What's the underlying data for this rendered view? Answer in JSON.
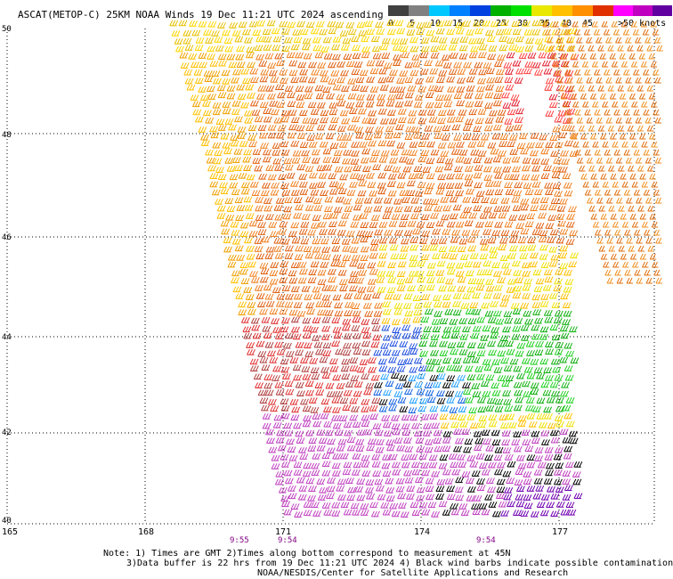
{
  "title": "ASCAT(METOP-C) 25KM NOAA Winds 19 Dec 11:21 UTC 2024 ascending",
  "colorbar": {
    "colors": [
      "#404040",
      "#808080",
      "#00c8ff",
      "#0080ff",
      "#0040e0",
      "#00b000",
      "#00e000",
      "#e8e800",
      "#ffc000",
      "#ff9000",
      "#e03000",
      "#ff3030",
      "#8b5a2b",
      "#b07040",
      "#ff00ff",
      "#c000c0",
      "#6000a0"
    ],
    "labels": [
      "0",
      "5",
      "10",
      "15",
      "20",
      "25",
      "30",
      "35",
      "40",
      "45",
      ">50 knots"
    ]
  },
  "latitudes": [
    "50",
    "48",
    "46",
    "44",
    "42",
    "40"
  ],
  "longitudes": [
    "165",
    "168",
    "171",
    "174",
    "177"
  ],
  "times": [
    "9:55",
    "9:54",
    "9:54"
  ],
  "notes": {
    "line1": "Note: 1) Times are GMT 2)Times along bottom correspond to measurement at 45N",
    "line2": "3)Data buffer is 22 hrs from 19 Dec 11:21 UTC 2024 4) Black wind barbs indicate possible contamination",
    "line3": "NOAA/NESDIS/Center for Satellite Applications and Research"
  }
}
